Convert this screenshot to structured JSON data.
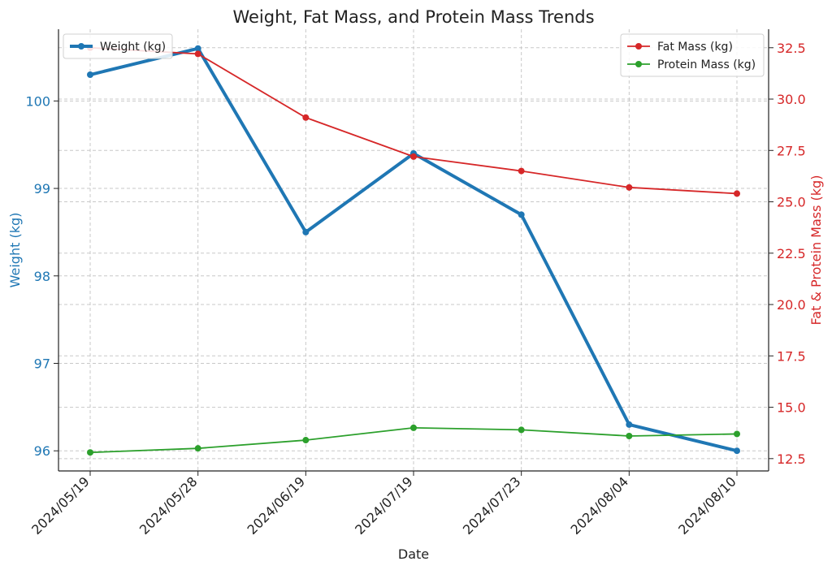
{
  "chart_data": {
    "type": "line",
    "title": "Weight, Fat Mass, and Protein Mass Trends",
    "xlabel": "Date",
    "ylabel_left": "Weight (kg)",
    "ylabel_right": "Fat & Protein Mass (kg)",
    "categories": [
      "2024/05/19",
      "2024/05/28",
      "2024/06/19",
      "2024/07/19",
      "2024/07/23",
      "2024/08/04",
      "2024/08/10"
    ],
    "ylim_left": [
      95.77,
      100.82
    ],
    "yticks_left": [
      96,
      97,
      98,
      99,
      100
    ],
    "ylim_right": [
      11.9,
      33.4
    ],
    "yticks_right": [
      12.5,
      15.0,
      17.5,
      20.0,
      22.5,
      25.0,
      27.5,
      30.0,
      32.5
    ],
    "grid": true,
    "series": [
      {
        "name": "Weight (kg)",
        "axis": "left",
        "color": "#1f77b4",
        "values": [
          100.3,
          100.6,
          98.5,
          99.4,
          98.7,
          96.3,
          96.0
        ]
      },
      {
        "name": "Fat Mass (kg)",
        "axis": "right",
        "color": "#d62728",
        "values": [
          32.5,
          32.2,
          29.1,
          27.2,
          26.5,
          25.7,
          25.4
        ]
      },
      {
        "name": "Protein Mass (kg)",
        "axis": "right",
        "color": "#2ca02c",
        "values": [
          12.8,
          13.0,
          13.4,
          14.0,
          13.9,
          13.6,
          13.7
        ]
      }
    ],
    "legend_left": "top-left",
    "legend_right": "top-right"
  }
}
